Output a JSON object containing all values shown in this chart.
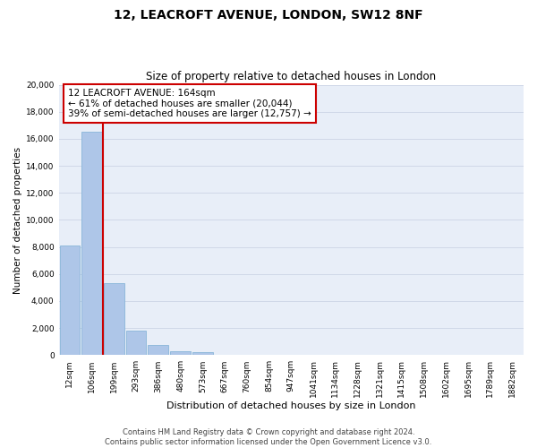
{
  "title": "12, LEACROFT AVENUE, LONDON, SW12 8NF",
  "subtitle": "Size of property relative to detached houses in London",
  "xlabel": "Distribution of detached houses by size in London",
  "ylabel": "Number of detached properties",
  "bar_labels": [
    "12sqm",
    "106sqm",
    "199sqm",
    "293sqm",
    "386sqm",
    "480sqm",
    "573sqm",
    "667sqm",
    "760sqm",
    "854sqm",
    "947sqm",
    "1041sqm",
    "1134sqm",
    "1228sqm",
    "1321sqm",
    "1415sqm",
    "1508sqm",
    "1602sqm",
    "1695sqm",
    "1789sqm",
    "1882sqm"
  ],
  "bar_values": [
    8100,
    16500,
    5300,
    1800,
    750,
    300,
    200,
    0,
    0,
    0,
    0,
    0,
    0,
    0,
    0,
    0,
    0,
    0,
    0,
    0,
    0
  ],
  "bar_color": "#aec6e8",
  "bar_edge_color": "#7bafd4",
  "grid_color": "#d0d8e8",
  "bg_color": "#e8eef8",
  "ylim": [
    0,
    20000
  ],
  "yticks": [
    0,
    2000,
    4000,
    6000,
    8000,
    10000,
    12000,
    14000,
    16000,
    18000,
    20000
  ],
  "property_line_color": "#cc0000",
  "annotation_line1": "12 LEACROFT AVENUE: 164sqm",
  "annotation_line2": "← 61% of detached houses are smaller (20,044)",
  "annotation_line3": "39% of semi-detached houses are larger (12,757) →",
  "annotation_box_color": "#ffffff",
  "annotation_box_edge": "#cc0000",
  "footer_line1": "Contains HM Land Registry data © Crown copyright and database right 2024.",
  "footer_line2": "Contains public sector information licensed under the Open Government Licence v3.0.",
  "title_fontsize": 10,
  "subtitle_fontsize": 8.5,
  "xlabel_fontsize": 8,
  "ylabel_fontsize": 7.5,
  "tick_fontsize": 6.5,
  "annotation_fontsize": 7.5,
  "footer_fontsize": 6
}
